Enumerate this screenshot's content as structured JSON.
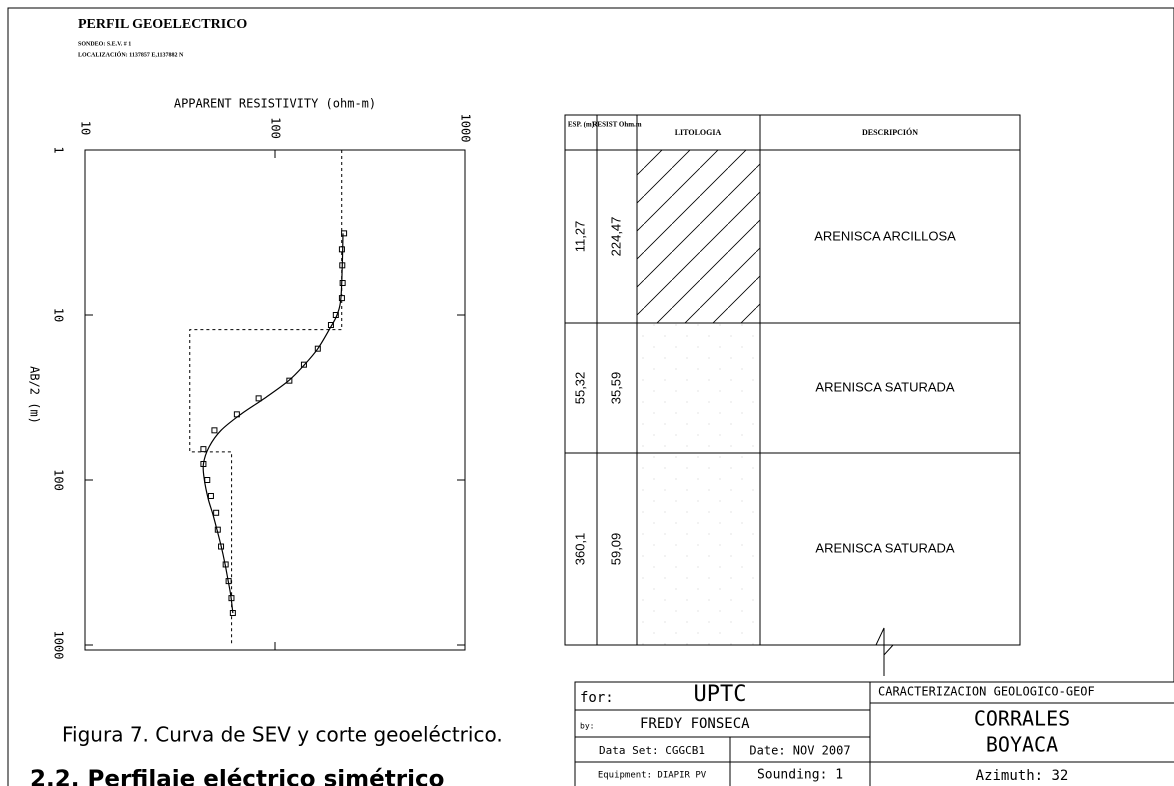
{
  "header": {
    "title": "PERFIL GEOELECTRICO",
    "sounding": "SONDEO: S.E.V. # 1",
    "location": "LOCALIZACIÓN: 1137857 E,1137882 N"
  },
  "chart_data": {
    "type": "line",
    "xlabel": "APPARENT RESISTIVITY (ohm-m)",
    "ylabel": "AB/2 (m)",
    "xscale": "log",
    "yscale": "log",
    "yinverted": true,
    "xlim": [
      10,
      1000
    ],
    "xticks": [
      10,
      100,
      1000
    ],
    "ylim": [
      1,
      1000
    ],
    "yticks": [
      1,
      10,
      100,
      1000
    ],
    "series": [
      {
        "style": "markers",
        "color": "#000000",
        "x": [
          231,
          225,
          226,
          227,
          225,
          209,
          197,
          168,
          142,
          119,
          82,
          63,
          48,
          42,
          42,
          44,
          46,
          49,
          50,
          52,
          55,
          57,
          59,
          60
        ],
        "values": [
          3.2,
          4.0,
          5.0,
          6.4,
          7.9,
          10,
          11.5,
          16,
          20,
          25,
          32,
          40,
          50,
          65,
          80,
          100,
          125,
          158,
          200,
          253,
          325,
          410,
          520,
          640
        ]
      },
      {
        "style": "line",
        "color": "#000000",
        "x": [
          228,
          226,
          222,
          212,
          195,
          168,
          143,
          118,
          88,
          66,
          52,
          45,
          42,
          42.5,
          44.5,
          47,
          49.5,
          52,
          54.5,
          56.5,
          58.5,
          60
        ],
        "values": [
          3.2,
          5,
          8,
          10,
          12,
          16,
          20,
          25,
          32,
          40,
          50,
          63,
          80,
          100,
          130,
          160,
          200,
          250,
          320,
          400,
          500,
          640
        ]
      }
    ],
    "model": {
      "style": "dashed",
      "resistivity": [
        224.47,
        35.59,
        59.09
      ],
      "thickness": [
        11.27,
        55.32
      ]
    }
  },
  "table": {
    "headers": [
      "ESP. (m)",
      "RESIST Ohm.m",
      "LITOLOGIA",
      "DESCRIPCIÓN"
    ],
    "rows": [
      [
        "11,27",
        "224,47",
        "ARENISCA ARCILLOSA"
      ],
      [
        "55,32",
        "35,59",
        "ARENISCA SATURADA"
      ],
      [
        "360,1",
        "59,09",
        "ARENISCA SATURADA"
      ]
    ]
  },
  "title_block": {
    "for_label": "for:",
    "for": "UPTC",
    "by_label": "by:",
    "by": "FREDY FONSECA",
    "data_set": "Data Set: CGGCB1",
    "date": "Date: NOV 2007",
    "equipment": "Equipment: DIAPIR PV",
    "sounding": "Sounding: 1",
    "project": "CARACTERIZACION GEOLOGICO-GEOF",
    "place1": "CORRALES",
    "place2": "BOYACA",
    "azimuth": "Azimuth: 32"
  },
  "caption": "Figura 7. Curva de SEV y corte geoeléctrico.",
  "heading": "2.2. Perfilaje eléctrico simétrico"
}
